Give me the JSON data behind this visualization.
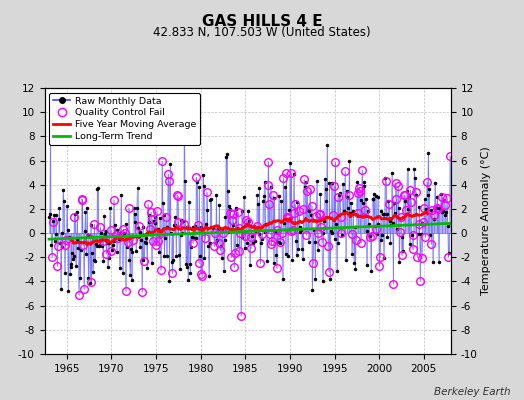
{
  "title": "GAS HILLS 4 E",
  "subtitle": "42.833 N, 107.503 W (United States)",
  "ylabel": "Temperature Anomaly (°C)",
  "xlabel_years": [
    1965,
    1970,
    1975,
    1980,
    1985,
    1990,
    1995,
    2000,
    2005
  ],
  "ylim": [
    -10,
    12
  ],
  "yticks": [
    -10,
    -8,
    -6,
    -4,
    -2,
    0,
    2,
    4,
    6,
    8,
    10,
    12
  ],
  "xlim_start": 1962.5,
  "xlim_end": 2008.0,
  "background_color": "#d8d8d8",
  "plot_bg_color": "#ffffff",
  "raw_line_color": "#4444ff",
  "raw_marker_color": "#000000",
  "qc_fail_color": "#ff00ff",
  "moving_avg_color": "#ff0000",
  "trend_color": "#00bb00",
  "watermark": "Berkeley Earth",
  "seed": 137
}
